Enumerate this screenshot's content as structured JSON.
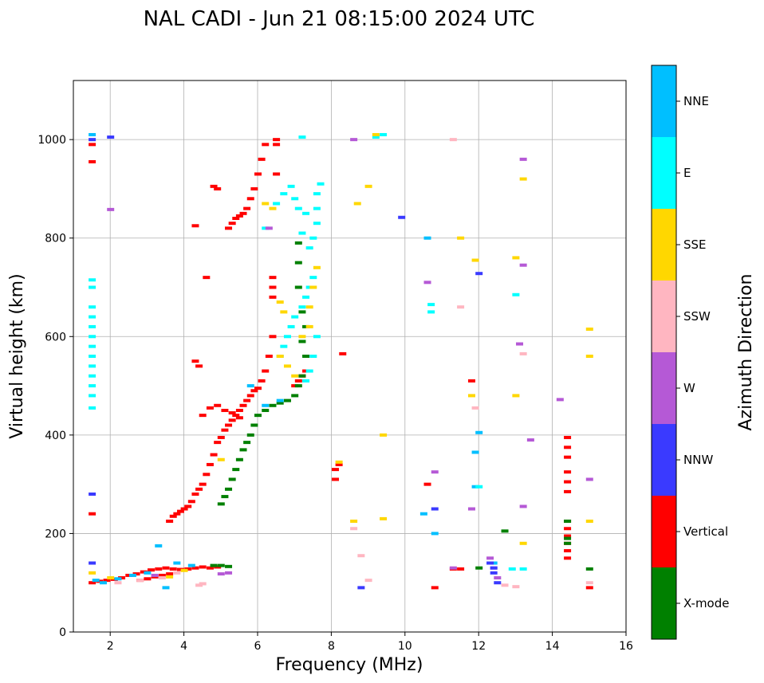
{
  "chart_data": {
    "type": "scatter",
    "title": "NAL CADI - Jun 21 08:15:00 2024 UTC",
    "xlabel": "Frequency (MHz)",
    "ylabel": "Virtual height (km)",
    "xlim": [
      1,
      16
    ],
    "ylim": [
      0,
      1120
    ],
    "xticks": [
      2,
      4,
      6,
      8,
      10,
      12,
      14,
      16
    ],
    "yticks": [
      0,
      200,
      400,
      600,
      800,
      1000
    ],
    "grid": true,
    "colorbar": {
      "title": "Azimuth Direction",
      "categories": [
        {
          "name": "NNE",
          "color": "#00bfff"
        },
        {
          "name": "E",
          "color": "#00ffff"
        },
        {
          "name": "SSE",
          "color": "#ffd700"
        },
        {
          "name": "SSW",
          "color": "#ffb6c1"
        },
        {
          "name": "W",
          "color": "#b559d6"
        },
        {
          "name": "NNW",
          "color": "#3a3aff"
        },
        {
          "name": "Vertical",
          "color": "#ff0000"
        },
        {
          "name": "X-mode",
          "color": "#008000"
        }
      ]
    },
    "series": [
      {
        "name": "Vertical",
        "color": "#ff0000",
        "points": [
          [
            1.5,
            100
          ],
          [
            1.7,
            103
          ],
          [
            1.9,
            105
          ],
          [
            2.1,
            107
          ],
          [
            2.3,
            110
          ],
          [
            2.5,
            115
          ],
          [
            2.7,
            118
          ],
          [
            2.9,
            122
          ],
          [
            3.1,
            126
          ],
          [
            3.3,
            128
          ],
          [
            3.5,
            130
          ],
          [
            3.7,
            128
          ],
          [
            3.9,
            127
          ],
          [
            4.1,
            128
          ],
          [
            4.3,
            130
          ],
          [
            4.5,
            132
          ],
          [
            4.7,
            130
          ],
          [
            4.9,
            132
          ],
          [
            2.8,
            105
          ],
          [
            3.0,
            108
          ],
          [
            3.2,
            112
          ],
          [
            3.4,
            115
          ],
          [
            3.6,
            118
          ],
          [
            3.6,
            225
          ],
          [
            3.7,
            235
          ],
          [
            3.8,
            240
          ],
          [
            3.9,
            245
          ],
          [
            4.0,
            250
          ],
          [
            4.1,
            255
          ],
          [
            4.2,
            265
          ],
          [
            4.3,
            280
          ],
          [
            4.4,
            290
          ],
          [
            4.5,
            300
          ],
          [
            4.6,
            320
          ],
          [
            4.7,
            340
          ],
          [
            4.8,
            360
          ],
          [
            4.9,
            385
          ],
          [
            5.0,
            395
          ],
          [
            5.1,
            410
          ],
          [
            5.2,
            420
          ],
          [
            5.3,
            430
          ],
          [
            5.4,
            440
          ],
          [
            5.5,
            450
          ],
          [
            5.6,
            460
          ],
          [
            5.7,
            470
          ],
          [
            5.8,
            480
          ],
          [
            5.9,
            490
          ],
          [
            6.0,
            495
          ],
          [
            6.1,
            510
          ],
          [
            6.2,
            530
          ],
          [
            6.3,
            560
          ],
          [
            6.4,
            600
          ],
          [
            4.5,
            440
          ],
          [
            4.7,
            455
          ],
          [
            4.9,
            460
          ],
          [
            5.1,
            450
          ],
          [
            5.3,
            445
          ],
          [
            5.5,
            435
          ],
          [
            6.4,
            680
          ],
          [
            6.4,
            700
          ],
          [
            6.4,
            720
          ],
          [
            5.2,
            820
          ],
          [
            5.3,
            830
          ],
          [
            5.4,
            840
          ],
          [
            5.5,
            845
          ],
          [
            5.6,
            850
          ],
          [
            5.7,
            860
          ],
          [
            5.8,
            880
          ],
          [
            5.9,
            900
          ],
          [
            6.0,
            930
          ],
          [
            6.1,
            960
          ],
          [
            6.2,
            990
          ],
          [
            6.5,
            1000
          ],
          [
            6.5,
            990
          ],
          [
            6.5,
            930
          ],
          [
            4.3,
            825
          ],
          [
            4.8,
            905
          ],
          [
            4.9,
            900
          ],
          [
            4.6,
            720
          ],
          [
            4.3,
            550
          ],
          [
            4.4,
            540
          ],
          [
            7.0,
            500
          ],
          [
            7.1,
            510
          ],
          [
            7.2,
            520
          ],
          [
            7.3,
            530
          ],
          [
            8.2,
            340
          ],
          [
            8.1,
            330
          ],
          [
            8.1,
            310
          ],
          [
            8.3,
            565
          ],
          [
            1.5,
            240
          ],
          [
            1.5,
            990
          ],
          [
            1.5,
            955
          ],
          [
            10.6,
            300
          ],
          [
            10.8,
            90
          ],
          [
            11.3,
            128
          ],
          [
            11.5,
            128
          ],
          [
            11.8,
            510
          ],
          [
            14.4,
            395
          ],
          [
            14.4,
            375
          ],
          [
            14.4,
            355
          ],
          [
            14.4,
            325
          ],
          [
            14.4,
            305
          ],
          [
            14.4,
            285
          ],
          [
            14.4,
            225
          ],
          [
            14.4,
            210
          ],
          [
            14.4,
            195
          ],
          [
            14.4,
            180
          ],
          [
            14.4,
            165
          ],
          [
            14.4,
            150
          ],
          [
            15.0,
            90
          ]
        ]
      },
      {
        "name": "X-mode",
        "color": "#008000",
        "points": [
          [
            4.8,
            135
          ],
          [
            5.0,
            135
          ],
          [
            5.2,
            133
          ],
          [
            5.0,
            260
          ],
          [
            5.1,
            275
          ],
          [
            5.2,
            290
          ],
          [
            5.3,
            310
          ],
          [
            5.4,
            330
          ],
          [
            5.5,
            350
          ],
          [
            5.6,
            370
          ],
          [
            5.7,
            385
          ],
          [
            5.8,
            400
          ],
          [
            5.9,
            420
          ],
          [
            6.0,
            440
          ],
          [
            6.2,
            450
          ],
          [
            6.4,
            460
          ],
          [
            6.6,
            465
          ],
          [
            6.8,
            470
          ],
          [
            7.0,
            480
          ],
          [
            7.1,
            500
          ],
          [
            7.2,
            520
          ],
          [
            7.3,
            560
          ],
          [
            7.2,
            590
          ],
          [
            7.3,
            620
          ],
          [
            7.2,
            650
          ],
          [
            7.1,
            700
          ],
          [
            7.1,
            750
          ],
          [
            7.1,
            790
          ],
          [
            12.0,
            130
          ],
          [
            12.7,
            205
          ],
          [
            14.4,
            225
          ],
          [
            14.4,
            190
          ],
          [
            14.4,
            180
          ],
          [
            15.0,
            128
          ]
        ]
      },
      {
        "name": "NNE",
        "color": "#00bfff",
        "points": [
          [
            1.5,
            1010
          ],
          [
            1.6,
            105
          ],
          [
            1.8,
            100
          ],
          [
            2.2,
            108
          ],
          [
            2.6,
            115
          ],
          [
            3.0,
            120
          ],
          [
            3.3,
            175
          ],
          [
            3.5,
            90
          ],
          [
            3.8,
            140
          ],
          [
            4.2,
            135
          ],
          [
            5.8,
            500
          ],
          [
            6.2,
            460
          ],
          [
            6.6,
            470
          ],
          [
            10.5,
            240
          ],
          [
            10.6,
            800
          ],
          [
            10.8,
            200
          ],
          [
            11.9,
            295
          ],
          [
            11.9,
            365
          ],
          [
            12.0,
            405
          ],
          [
            12.4,
            140
          ]
        ]
      },
      {
        "name": "E",
        "color": "#00ffff",
        "points": [
          [
            1.5,
            455
          ],
          [
            1.5,
            480
          ],
          [
            1.5,
            500
          ],
          [
            1.5,
            520
          ],
          [
            1.5,
            540
          ],
          [
            1.5,
            560
          ],
          [
            1.5,
            580
          ],
          [
            1.5,
            600
          ],
          [
            1.5,
            620
          ],
          [
            1.5,
            640
          ],
          [
            1.5,
            660
          ],
          [
            1.5,
            700
          ],
          [
            1.5,
            715
          ],
          [
            6.2,
            820
          ],
          [
            6.5,
            870
          ],
          [
            6.7,
            890
          ],
          [
            6.9,
            905
          ],
          [
            7.0,
            880
          ],
          [
            7.1,
            860
          ],
          [
            7.2,
            810
          ],
          [
            7.3,
            850
          ],
          [
            7.4,
            780
          ],
          [
            7.5,
            800
          ],
          [
            7.6,
            830
          ],
          [
            7.6,
            860
          ],
          [
            7.6,
            890
          ],
          [
            7.7,
            910
          ],
          [
            6.6,
            560
          ],
          [
            6.7,
            580
          ],
          [
            6.8,
            600
          ],
          [
            6.9,
            620
          ],
          [
            7.0,
            640
          ],
          [
            7.2,
            660
          ],
          [
            7.3,
            680
          ],
          [
            7.4,
            700
          ],
          [
            7.5,
            720
          ],
          [
            7.6,
            600
          ],
          [
            7.5,
            560
          ],
          [
            7.4,
            530
          ],
          [
            7.3,
            510
          ],
          [
            7.2,
            1005
          ],
          [
            9.2,
            1005
          ],
          [
            9.4,
            1010
          ],
          [
            10.7,
            650
          ],
          [
            10.7,
            665
          ],
          [
            12.0,
            295
          ],
          [
            13.0,
            685
          ],
          [
            13.2,
            128
          ],
          [
            12.9,
            128
          ]
        ]
      },
      {
        "name": "SSE",
        "color": "#ffd700",
        "points": [
          [
            1.5,
            120
          ],
          [
            2.0,
            110
          ],
          [
            3.6,
            112
          ],
          [
            4.0,
            125
          ],
          [
            5.0,
            350
          ],
          [
            6.2,
            870
          ],
          [
            6.4,
            860
          ],
          [
            6.6,
            670
          ],
          [
            6.7,
            650
          ],
          [
            6.6,
            560
          ],
          [
            6.8,
            540
          ],
          [
            7.0,
            520
          ],
          [
            7.2,
            600
          ],
          [
            7.4,
            620
          ],
          [
            7.6,
            740
          ],
          [
            7.5,
            700
          ],
          [
            7.4,
            660
          ],
          [
            8.2,
            345
          ],
          [
            8.6,
            225
          ],
          [
            8.7,
            870
          ],
          [
            9.0,
            905
          ],
          [
            9.2,
            1010
          ],
          [
            9.4,
            230
          ],
          [
            9.4,
            400
          ],
          [
            11.5,
            800
          ],
          [
            11.8,
            480
          ],
          [
            11.9,
            755
          ],
          [
            13.0,
            760
          ],
          [
            13.0,
            480
          ],
          [
            13.2,
            920
          ],
          [
            13.2,
            180
          ],
          [
            15.0,
            615
          ],
          [
            15.0,
            560
          ],
          [
            15.0,
            225
          ]
        ]
      },
      {
        "name": "SSW",
        "color": "#ffb6c1",
        "points": [
          [
            2.2,
            100
          ],
          [
            2.8,
            105
          ],
          [
            3.4,
            110
          ],
          [
            3.8,
            120
          ],
          [
            4.4,
            95
          ],
          [
            4.5,
            98
          ],
          [
            8.6,
            210
          ],
          [
            8.8,
            155
          ],
          [
            9.0,
            105
          ],
          [
            11.3,
            1000
          ],
          [
            11.9,
            455
          ],
          [
            11.5,
            660
          ],
          [
            12.7,
            95
          ],
          [
            13.0,
            92
          ],
          [
            13.2,
            565
          ],
          [
            15.0,
            100
          ]
        ]
      },
      {
        "name": "W",
        "color": "#b559d6",
        "points": [
          [
            2.0,
            858
          ],
          [
            3.2,
            115
          ],
          [
            5.0,
            118
          ],
          [
            5.2,
            120
          ],
          [
            6.3,
            820
          ],
          [
            8.6,
            1000
          ],
          [
            10.6,
            710
          ],
          [
            10.8,
            325
          ],
          [
            11.3,
            130
          ],
          [
            11.8,
            250
          ],
          [
            12.3,
            150
          ],
          [
            12.4,
            130
          ],
          [
            12.5,
            110
          ],
          [
            13.1,
            585
          ],
          [
            13.2,
            960
          ],
          [
            13.2,
            745
          ],
          [
            13.2,
            255
          ],
          [
            13.4,
            390
          ],
          [
            14.2,
            472
          ],
          [
            15.0,
            310
          ]
        ]
      },
      {
        "name": "NNW",
        "color": "#3a3aff",
        "points": [
          [
            1.5,
            1000
          ],
          [
            2.0,
            1005
          ],
          [
            1.5,
            280
          ],
          [
            1.5,
            140
          ],
          [
            8.8,
            90
          ],
          [
            9.9,
            842
          ],
          [
            10.8,
            250
          ],
          [
            12.0,
            728
          ],
          [
            12.3,
            140
          ],
          [
            12.4,
            120
          ],
          [
            12.5,
            100
          ],
          [
            12.4,
            130
          ]
        ]
      }
    ]
  }
}
